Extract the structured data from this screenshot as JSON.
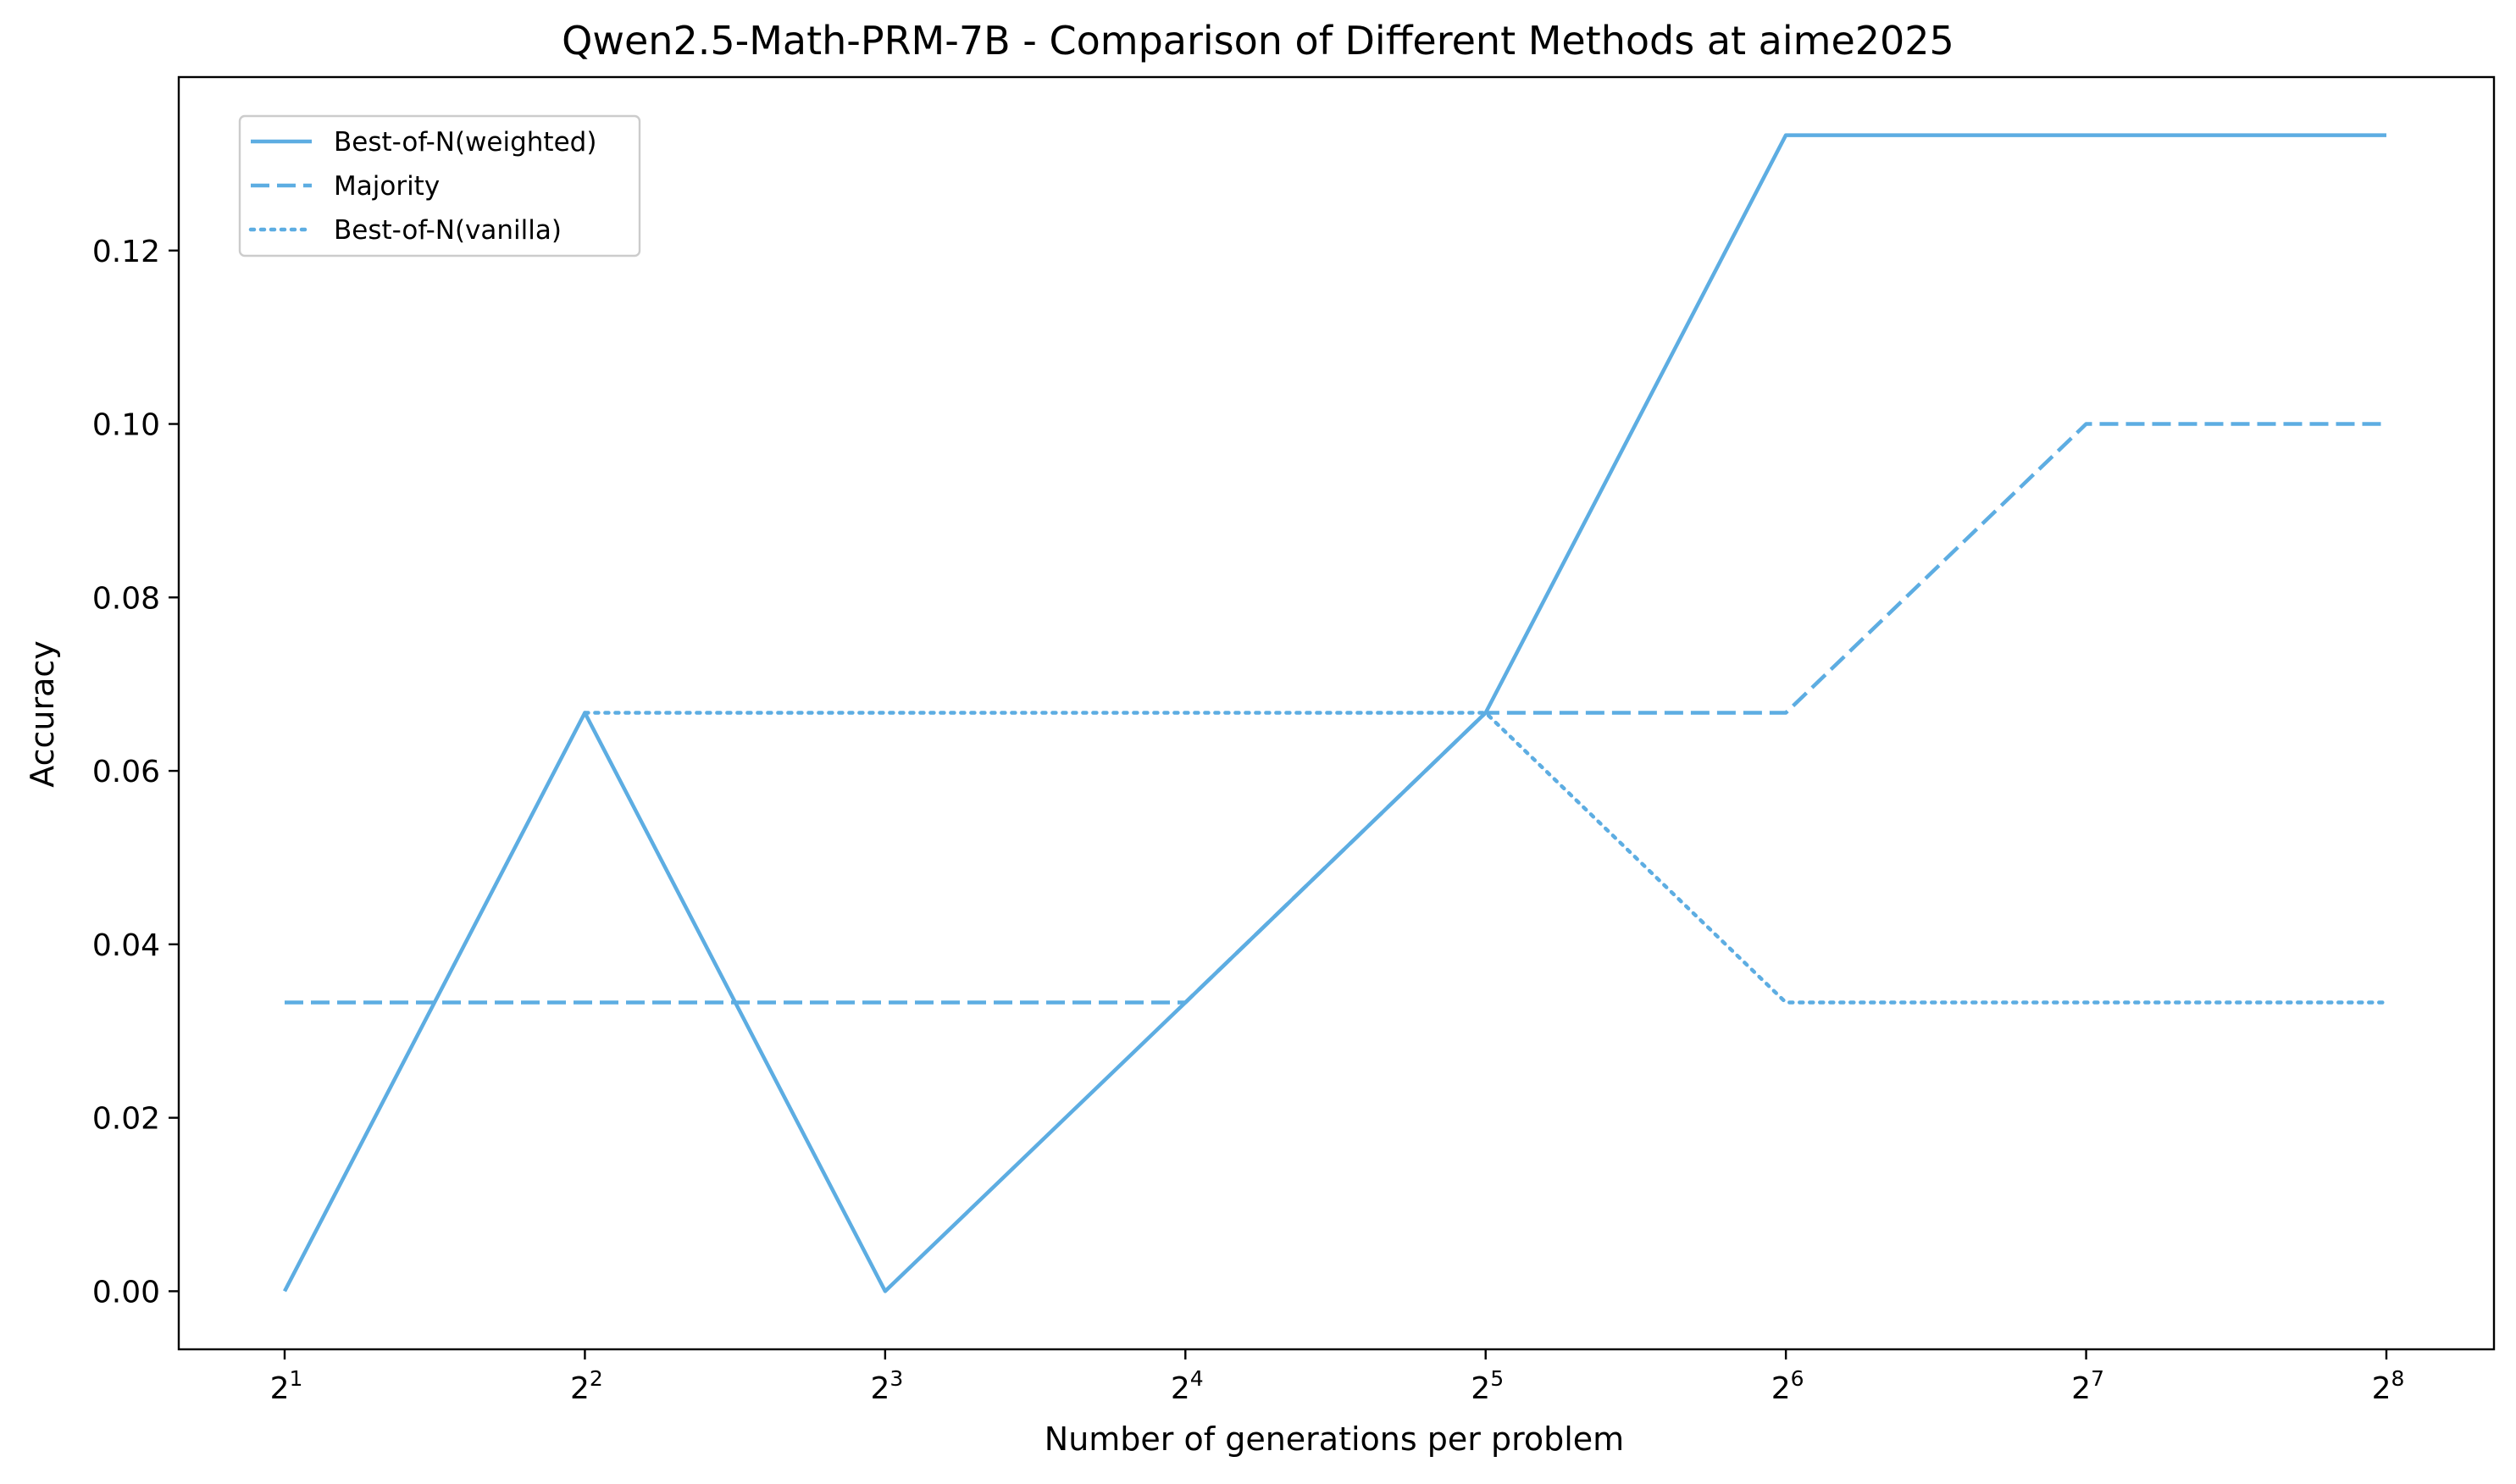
{
  "chart_data": {
    "type": "line",
    "title": "Qwen2.5-Math-PRM-7B - Comparison of Different Methods at aime2025",
    "xlabel": "Number of generations per problem",
    "ylabel": "Accuracy",
    "x_scale": "log2",
    "x": [
      2,
      4,
      8,
      16,
      32,
      64,
      128,
      256
    ],
    "x_tick_labels": [
      {
        "base": "2",
        "exp": "1"
      },
      {
        "base": "2",
        "exp": "2"
      },
      {
        "base": "2",
        "exp": "3"
      },
      {
        "base": "2",
        "exp": "4"
      },
      {
        "base": "2",
        "exp": "5"
      },
      {
        "base": "2",
        "exp": "6"
      },
      {
        "base": "2",
        "exp": "7"
      },
      {
        "base": "2",
        "exp": "8"
      }
    ],
    "y_ticks": [
      0.0,
      0.02,
      0.04,
      0.06,
      0.08,
      0.1,
      0.12
    ],
    "y_tick_labels": [
      "0.00",
      "0.02",
      "0.04",
      "0.06",
      "0.08",
      "0.10",
      "0.12"
    ],
    "ylim": [
      -0.0067,
      0.14
    ],
    "grid": false,
    "legend_position": "top-left",
    "series": [
      {
        "name": "Best-of-N(weighted)",
        "style": "solid",
        "color": "#5DADE2",
        "values": [
          0.0,
          0.0667,
          0.0,
          0.0333,
          0.0667,
          0.1333,
          0.1333,
          0.1333
        ]
      },
      {
        "name": "Majority",
        "style": "dashed",
        "color": "#5DADE2",
        "values": [
          0.0333,
          0.0333,
          0.0333,
          0.0333,
          0.0667,
          0.0667,
          0.1,
          0.1
        ]
      },
      {
        "name": "Best-of-N(vanilla)",
        "style": "dotted",
        "color": "#5DADE2",
        "values": [
          null,
          0.0667,
          0.0667,
          0.0667,
          0.0667,
          0.0333,
          0.0333,
          0.0333
        ]
      }
    ]
  }
}
